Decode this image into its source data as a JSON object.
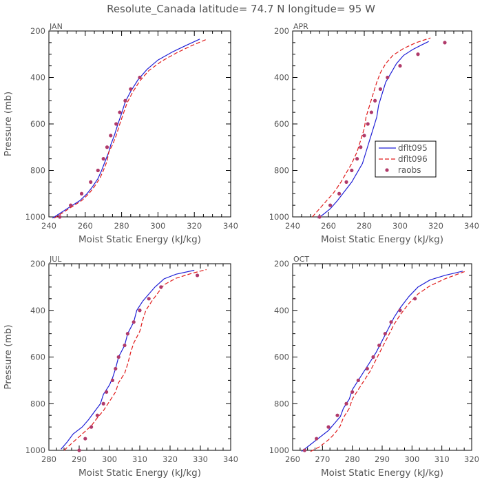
{
  "title": "Resolute_Canada  latitude= 74.7 N longitude= 95 W",
  "colors": {
    "dflt095": "#1f1fd6",
    "dflt096": "#e01a1a",
    "raobs": "#b03a6a",
    "axis": "#000000",
    "text": "#555555"
  },
  "legend": {
    "panel": 1,
    "placement": "center-right",
    "entries": [
      {
        "name": "dflt095",
        "style": "solid"
      },
      {
        "name": "dflt096",
        "style": "dashed"
      },
      {
        "name": "raobs",
        "style": "dots"
      }
    ]
  },
  "chart_data": [
    {
      "type": "line",
      "title": "JAN",
      "xlabel": "Moist Static Energy (kJ/kg)",
      "ylabel": "Pressure (mb)",
      "xlim": [
        240,
        340
      ],
      "ylim": [
        1000,
        200
      ],
      "xticks": [
        240,
        260,
        280,
        300,
        320,
        340
      ],
      "yticks": [
        200,
        400,
        600,
        800,
        1000
      ],
      "series": [
        {
          "name": "dflt095",
          "points": [
            [
              242,
              1005
            ],
            [
              247,
              980
            ],
            [
              252,
              955
            ],
            [
              257,
              930
            ],
            [
              261,
              900
            ],
            [
              264,
              870
            ],
            [
              267,
              835
            ],
            [
              269,
              800
            ],
            [
              271,
              760
            ],
            [
              273,
              720
            ],
            [
              274,
              690
            ],
            [
              276,
              650
            ],
            [
              278,
              600
            ],
            [
              280,
              555
            ],
            [
              282,
              505
            ],
            [
              285,
              460
            ],
            [
              289,
              410
            ],
            [
              294,
              365
            ],
            [
              300,
              325
            ],
            [
              308,
              290
            ],
            [
              316,
              260
            ],
            [
              323,
              235
            ]
          ]
        },
        {
          "name": "dflt096",
          "points": [
            [
              243,
              1005
            ],
            [
              248,
              980
            ],
            [
              253,
              955
            ],
            [
              258,
              930
            ],
            [
              262,
              900
            ],
            [
              265,
              870
            ],
            [
              268,
              835
            ],
            [
              270,
              800
            ],
            [
              272,
              760
            ],
            [
              273,
              720
            ],
            [
              275,
              690
            ],
            [
              277,
              650
            ],
            [
              279,
              600
            ],
            [
              281,
              555
            ],
            [
              283,
              510
            ],
            [
              286,
              465
            ],
            [
              290,
              415
            ],
            [
              295,
              370
            ],
            [
              302,
              330
            ],
            [
              310,
              295
            ],
            [
              318,
              265
            ],
            [
              327,
              235
            ]
          ]
        }
      ],
      "points": {
        "name": "raobs",
        "points": [
          [
            246,
            1000
          ],
          [
            252,
            950
          ],
          [
            258,
            900
          ],
          [
            263,
            850
          ],
          [
            267,
            800
          ],
          [
            270,
            750
          ],
          [
            272,
            700
          ],
          [
            274,
            650
          ],
          [
            277,
            600
          ],
          [
            279,
            550
          ],
          [
            282,
            500
          ],
          [
            285,
            450
          ],
          [
            290,
            400
          ]
        ]
      }
    },
    {
      "type": "line",
      "title": "APR",
      "xlabel": "Moist Static Energy (kJ/kg)",
      "ylabel": "",
      "xlim": [
        240,
        340
      ],
      "ylim": [
        1000,
        200
      ],
      "xticks": [
        240,
        260,
        280,
        300,
        320,
        340
      ],
      "yticks": [
        200,
        400,
        600,
        800,
        1000
      ],
      "series": [
        {
          "name": "dflt095",
          "points": [
            [
              254,
              1005
            ],
            [
              257,
              990
            ],
            [
              261,
              965
            ],
            [
              265,
              930
            ],
            [
              269,
              890
            ],
            [
              273,
              850
            ],
            [
              276,
              810
            ],
            [
              279,
              770
            ],
            [
              281,
              720
            ],
            [
              283,
              670
            ],
            [
              285,
              620
            ],
            [
              287,
              570
            ],
            [
              288,
              520
            ],
            [
              290,
              470
            ],
            [
              292,
              420
            ],
            [
              295,
              380
            ],
            [
              298,
              340
            ],
            [
              302,
              305
            ],
            [
              307,
              280
            ],
            [
              312,
              260
            ],
            [
              316,
              245
            ]
          ]
        },
        {
          "name": "dflt096",
          "points": [
            [
              251,
              1000
            ],
            [
              255,
              965
            ],
            [
              259,
              930
            ],
            [
              263,
              895
            ],
            [
              267,
              850
            ],
            [
              270,
              810
            ],
            [
              273,
              770
            ],
            [
              276,
              720
            ],
            [
              278,
              670
            ],
            [
              280,
              620
            ],
            [
              281,
              570
            ],
            [
              283,
              520
            ],
            [
              285,
              470
            ],
            [
              287,
              420
            ],
            [
              289,
              380
            ],
            [
              292,
              340
            ],
            [
              296,
              305
            ],
            [
              302,
              275
            ],
            [
              309,
              250
            ],
            [
              317,
              230
            ]
          ]
        }
      ],
      "points": {
        "name": "raobs",
        "points": [
          [
            255,
            1000
          ],
          [
            261,
            950
          ],
          [
            266,
            900
          ],
          [
            270,
            850
          ],
          [
            273,
            800
          ],
          [
            276,
            750
          ],
          [
            278,
            700
          ],
          [
            280,
            650
          ],
          [
            282,
            600
          ],
          [
            284,
            550
          ],
          [
            286,
            500
          ],
          [
            289,
            450
          ],
          [
            293,
            400
          ],
          [
            300,
            350
          ],
          [
            310,
            300
          ],
          [
            325,
            250
          ]
        ]
      }
    },
    {
      "type": "line",
      "title": "JUL",
      "xlabel": "Moist Static Energy (kJ/kg)",
      "ylabel": "Pressure (mb)",
      "xlim": [
        280,
        340
      ],
      "ylim": [
        1000,
        200
      ],
      "xticks": [
        280,
        290,
        300,
        310,
        320,
        330,
        340
      ],
      "yticks": [
        200,
        400,
        600,
        800,
        1000
      ],
      "series": [
        {
          "name": "dflt095",
          "points": [
            [
              284,
              995
            ],
            [
              286,
              965
            ],
            [
              288,
              930
            ],
            [
              291,
              900
            ],
            [
              293,
              870
            ],
            [
              295,
              835
            ],
            [
              297,
              800
            ],
            [
              298,
              760
            ],
            [
              300,
              720
            ],
            [
              301,
              690
            ],
            [
              302,
              650
            ],
            [
              303,
              600
            ],
            [
              305,
              550
            ],
            [
              306,
              500
            ],
            [
              308,
              450
            ],
            [
              309,
              400
            ],
            [
              311,
              360
            ],
            [
              313,
              330
            ],
            [
              315,
              300
            ],
            [
              318,
              265
            ],
            [
              322,
              245
            ],
            [
              328,
              228
            ]
          ]
        },
        {
          "name": "dflt096",
          "points": [
            [
              285,
              1000
            ],
            [
              288,
              965
            ],
            [
              291,
              930
            ],
            [
              294,
              895
            ],
            [
              296,
              860
            ],
            [
              298,
              830
            ],
            [
              300,
              790
            ],
            [
              302,
              750
            ],
            [
              303,
              710
            ],
            [
              305,
              670
            ],
            [
              306,
              630
            ],
            [
              307,
              580
            ],
            [
              308,
              540
            ],
            [
              310,
              490
            ],
            [
              311,
              440
            ],
            [
              312,
              400
            ],
            [
              314,
              360
            ],
            [
              316,
              325
            ],
            [
              318,
              290
            ],
            [
              322,
              262
            ],
            [
              327,
              242
            ],
            [
              332,
              225
            ]
          ]
        }
      ],
      "points": {
        "name": "raobs",
        "points": [
          [
            290,
            1000
          ],
          [
            292,
            950
          ],
          [
            294,
            900
          ],
          [
            296,
            850
          ],
          [
            298,
            800
          ],
          [
            299,
            750
          ],
          [
            301,
            700
          ],
          [
            302,
            650
          ],
          [
            303,
            600
          ],
          [
            305,
            550
          ],
          [
            306,
            500
          ],
          [
            308,
            450
          ],
          [
            310,
            400
          ],
          [
            313,
            350
          ],
          [
            317,
            300
          ],
          [
            329,
            250
          ]
        ]
      }
    },
    {
      "type": "line",
      "title": "OCT",
      "xlabel": "Moist Static Energy (kJ/kg)",
      "ylabel": "",
      "xlim": [
        260,
        320
      ],
      "ylim": [
        1000,
        200
      ],
      "xticks": [
        260,
        270,
        280,
        290,
        300,
        310,
        320
      ],
      "yticks": [
        200,
        400,
        600,
        800,
        1000
      ],
      "series": [
        {
          "name": "dflt095",
          "points": [
            [
              263,
              1005
            ],
            [
              266,
              975
            ],
            [
              269,
              945
            ],
            [
              272,
              915
            ],
            [
              274,
              885
            ],
            [
              276,
              855
            ],
            [
              277,
              820
            ],
            [
              279,
              780
            ],
            [
              280,
              740
            ],
            [
              282,
              700
            ],
            [
              284,
              660
            ],
            [
              286,
              620
            ],
            [
              288,
              580
            ],
            [
              290,
              530
            ],
            [
              292,
              480
            ],
            [
              294,
              430
            ],
            [
              296,
              390
            ],
            [
              299,
              340
            ],
            [
              302,
              300
            ],
            [
              306,
              270
            ],
            [
              311,
              250
            ],
            [
              317,
              232
            ]
          ]
        },
        {
          "name": "dflt096",
          "points": [
            [
              266,
              1005
            ],
            [
              269,
              985
            ],
            [
              272,
              955
            ],
            [
              274,
              930
            ],
            [
              276,
              895
            ],
            [
              277,
              860
            ],
            [
              279,
              820
            ],
            [
              280,
              780
            ],
            [
              282,
              740
            ],
            [
              284,
              700
            ],
            [
              286,
              660
            ],
            [
              288,
              610
            ],
            [
              290,
              560
            ],
            [
              292,
              510
            ],
            [
              294,
              460
            ],
            [
              296,
              420
            ],
            [
              299,
              370
            ],
            [
              302,
              330
            ],
            [
              306,
              295
            ],
            [
              311,
              265
            ],
            [
              318,
              232
            ]
          ]
        }
      ],
      "points": {
        "name": "raobs",
        "points": [
          [
            264,
            1000
          ],
          [
            268,
            950
          ],
          [
            272,
            900
          ],
          [
            275,
            850
          ],
          [
            278,
            800
          ],
          [
            280,
            750
          ],
          [
            282,
            700
          ],
          [
            285,
            650
          ],
          [
            287,
            600
          ],
          [
            289,
            550
          ],
          [
            291,
            500
          ],
          [
            293,
            450
          ],
          [
            296,
            400
          ],
          [
            301,
            350
          ]
        ]
      }
    }
  ]
}
